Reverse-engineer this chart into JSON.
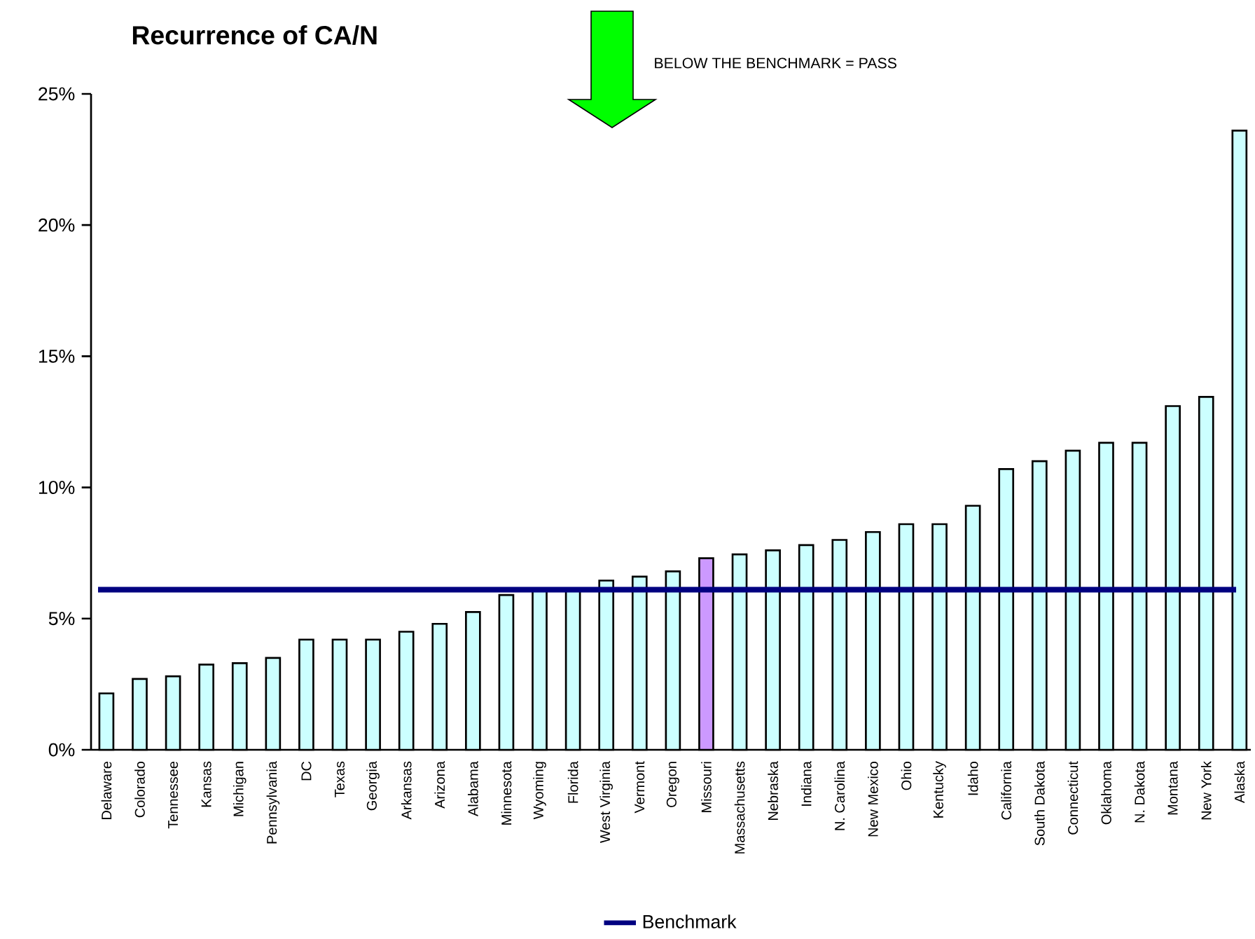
{
  "chart_data": {
    "type": "bar",
    "title": "Recurrence of CA/N",
    "annotations": [
      "BELOW THE BENCHMARK = PASS"
    ],
    "categories": [
      "Delaware",
      "Colorado",
      "Tennessee",
      "Kansas",
      "Michigan",
      "Pennsylvania",
      "DC",
      "Texas",
      "Georgia",
      "Arkansas",
      "Arizona",
      "Alabama",
      "Minnesota",
      "Wyoming",
      "Florida",
      "West Virginia",
      "Vermont",
      "Oregon",
      "Missouri",
      "Massachusetts",
      "Nebraska",
      "Indiana",
      "N. Carolina",
      "New Mexico",
      "Ohio",
      "Kentucky",
      "Idaho",
      "California",
      "South Dakota",
      "Connecticut",
      "Oklahoma",
      "N. Dakota",
      "Montana",
      "New York",
      "Alaska"
    ],
    "values": [
      2.15,
      2.7,
      2.8,
      3.25,
      3.3,
      3.5,
      4.2,
      4.2,
      4.2,
      4.5,
      4.8,
      5.25,
      5.9,
      6.1,
      6.1,
      6.45,
      6.6,
      6.8,
      7.3,
      7.45,
      7.6,
      7.8,
      8.0,
      8.3,
      8.6,
      8.6,
      9.3,
      10.7,
      11.0,
      11.4,
      11.7,
      11.7,
      13.1,
      13.45,
      23.6
    ],
    "colors": [
      "#ccffff",
      "#ccffff",
      "#ccffff",
      "#ccffff",
      "#ccffff",
      "#ccffff",
      "#ccffff",
      "#ccffff",
      "#ccffff",
      "#ccffff",
      "#ccffff",
      "#ccffff",
      "#ccffff",
      "#ccffff",
      "#ccffff",
      "#ccffff",
      "#ccffff",
      "#ccffff",
      "#cc99ff",
      "#ccffff",
      "#ccffff",
      "#ccffff",
      "#ccffff",
      "#ccffff",
      "#ccffff",
      "#ccffff",
      "#ccffff",
      "#ccffff",
      "#ccffff",
      "#ccffff",
      "#ccffff",
      "#ccffff",
      "#ccffff",
      "#ccffff",
      "#ccffff"
    ],
    "ylim": [
      0,
      25
    ],
    "yticks": [
      {
        "value": 0,
        "label": "0%"
      },
      {
        "value": 5,
        "label": "5%"
      },
      {
        "value": 10,
        "label": "10%"
      },
      {
        "value": 15,
        "label": "15%"
      },
      {
        "value": 20,
        "label": "20%"
      },
      {
        "value": 25,
        "label": "25%"
      }
    ],
    "ref_lines": [
      {
        "axis": "y",
        "value": 6.1,
        "label": "Benchmark",
        "color": "#000080"
      }
    ],
    "legend": "bottom"
  }
}
